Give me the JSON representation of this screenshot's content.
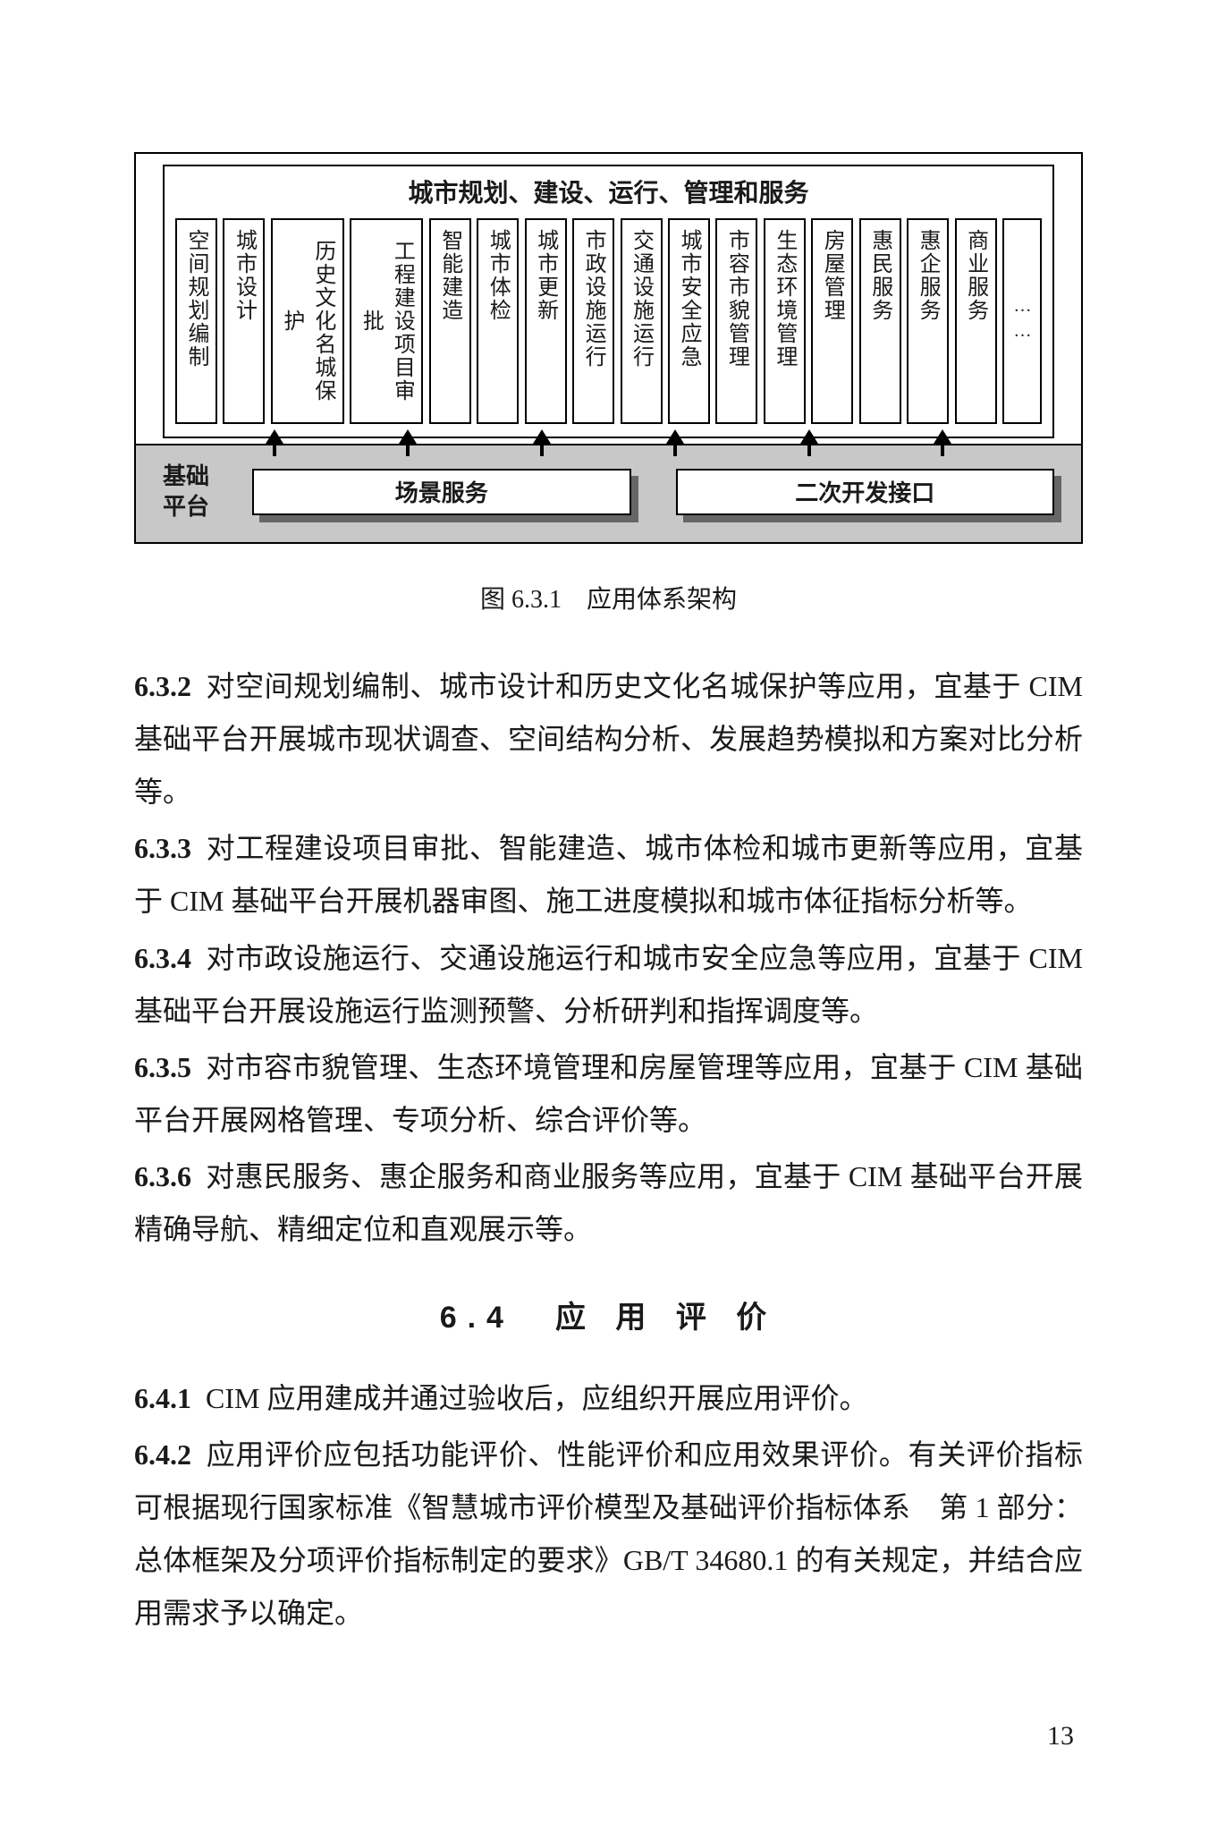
{
  "diagram": {
    "top_title": "城市规划、建设、运行、管理和服务",
    "vertical_items": [
      "空间规划编制",
      "城市设计",
      "历史文化名城保护",
      "工程建设项目审批",
      "智能建造",
      "城市体检",
      "城市更新",
      "市政设施运行",
      "交通设施运行",
      "城市安全应急",
      "市容市貌管理",
      "生态环境管理",
      "房屋管理",
      "惠民服务",
      "惠企服务",
      "商业服务",
      "……"
    ],
    "arrow_count": 6,
    "platform_label": "基础\n平台",
    "platform_boxes": [
      "场景服务",
      "二次开发接口"
    ],
    "colors": {
      "band_bg": "#c8c8c8",
      "box_shadow": "#666666",
      "border": "#000000",
      "page_bg": "#ffffff",
      "text": "#1a1a1a"
    }
  },
  "figure_caption": "图 6.3.1　应用体系架构",
  "paragraphs": [
    {
      "num": "6.3.2",
      "text": "对空间规划编制、城市设计和历史文化名城保护等应用，宜基于 CIM 基础平台开展城市现状调查、空间结构分析、发展趋势模拟和方案对比分析等。"
    },
    {
      "num": "6.3.3",
      "text": "对工程建设项目审批、智能建造、城市体检和城市更新等应用，宜基于 CIM 基础平台开展机器审图、施工进度模拟和城市体征指标分析等。"
    },
    {
      "num": "6.3.4",
      "text": "对市政设施运行、交通设施运行和城市安全应急等应用，宜基于 CIM 基础平台开展设施运行监测预警、分析研判和指挥调度等。"
    },
    {
      "num": "6.3.5",
      "text": "对市容市貌管理、生态环境管理和房屋管理等应用，宜基于 CIM 基础平台开展网格管理、专项分析、综合评价等。"
    },
    {
      "num": "6.3.6",
      "text": "对惠民服务、惠企服务和商业服务等应用，宜基于 CIM 基础平台开展精确导航、精细定位和直观展示等。"
    }
  ],
  "section_heading": "6.4　应 用 评 价",
  "paragraphs2": [
    {
      "num": "6.4.1",
      "text": "CIM 应用建成并通过验收后，应组织开展应用评价。"
    },
    {
      "num": "6.4.2",
      "text": "应用评价应包括功能评价、性能评价和应用效果评价。有关评价指标可根据现行国家标准《智慧城市评价模型及基础评价指标体系　第 1 部分：总体框架及分项评价指标制定的要求》GB/T 34680.1 的有关规定，并结合应用需求予以确定。"
    }
  ],
  "page_number": "13"
}
